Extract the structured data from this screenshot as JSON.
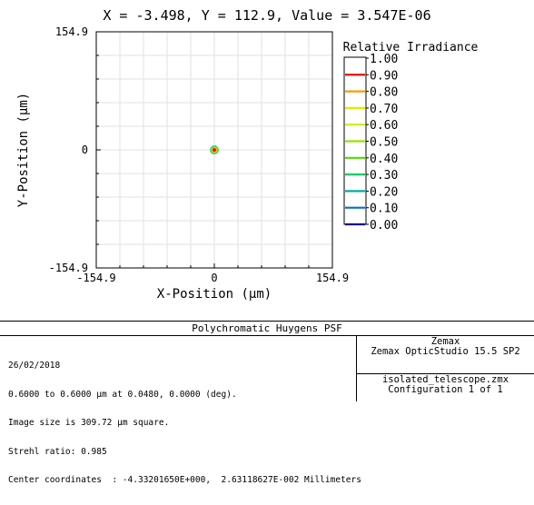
{
  "chart_data": {
    "type": "contour",
    "title": "X = -3.498, Y = 112.9, Value = 3.547E-06",
    "xlabel": "X-Position (µm)",
    "ylabel": "Y-Position (µm)",
    "xlim": [
      -154.9,
      154.9
    ],
    "ylim": [
      -154.9,
      154.9
    ],
    "x_ticks": [
      "-154.9",
      "0",
      "154.9"
    ],
    "y_ticks": [
      "154.9",
      "0",
      "-154.9"
    ],
    "grid": true,
    "legend_title": "Relative Irradiance",
    "legend_placement": "right",
    "levels": [
      {
        "label": "1.00",
        "color": "#ffffff"
      },
      {
        "label": "0.90",
        "color": "#e00000"
      },
      {
        "label": "0.80",
        "color": "#ff9900"
      },
      {
        "label": "0.70",
        "color": "#e8e800"
      },
      {
        "label": "0.60",
        "color": "#ccee00"
      },
      {
        "label": "0.50",
        "color": "#99e000"
      },
      {
        "label": "0.40",
        "color": "#55d800"
      },
      {
        "label": "0.30",
        "color": "#00cc66"
      },
      {
        "label": "0.20",
        "color": "#00aaaa"
      },
      {
        "label": "0.10",
        "color": "#0070cc"
      },
      {
        "label": "0.00",
        "color": "#1a0090"
      }
    ],
    "spot": {
      "x": 0,
      "y": 0,
      "rings": [
        {
          "level": 0.3,
          "color": "#00cc66",
          "radius_um": 4.8
        },
        {
          "level": 0.6,
          "color": "#ccee00",
          "radius_um": 3.4
        },
        {
          "level": 0.8,
          "color": "#ff9900",
          "radius_um": 2.3
        },
        {
          "level": 0.9,
          "color": "#e00000",
          "radius_um": 1.2
        }
      ]
    }
  },
  "info": {
    "title": "Polychromatic Huygens PSF",
    "lines": [
      "26/02/2018",
      "0.6000 to 0.6000 µm at 0.0480, 0.0000 (deg).",
      "Image size is 309.72 µm square.",
      "Strehl ratio: 0.985",
      "Center coordinates  : -4.33201650E+000,  2.63118627E-002 Millimeters"
    ],
    "company": "Zemax",
    "software": "Zemax OpticStudio 15.5 SP2",
    "file": "isolated_telescope.zmx",
    "configuration": "Configuration 1 of 1"
  }
}
